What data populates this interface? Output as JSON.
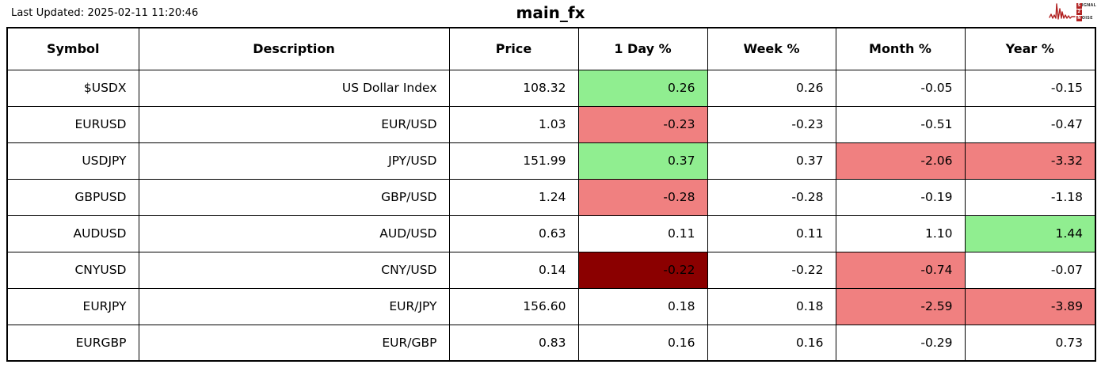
{
  "page": {
    "last_updated": "Last Updated: 2025-02-11 11:20:46",
    "title": "main_fx"
  },
  "logo": {
    "name": "signal-2-noise",
    "lines": [
      {
        "badge": "S",
        "rest": "IGNAL"
      },
      {
        "badge": "2",
        "rest": ""
      },
      {
        "badge": "N",
        "rest": "OISE"
      }
    ],
    "accent_color": "#b22222"
  },
  "colors": {
    "positive": "#90ee90",
    "negative": "#f08080",
    "strong_negative": "#8b0000",
    "border": "#000000",
    "background": "#ffffff"
  },
  "chart_data": {
    "type": "table",
    "title": "main_fx",
    "columns": [
      "Symbol",
      "Description",
      "Price",
      "1 Day %",
      "Week %",
      "Month %",
      "Year %"
    ],
    "rows": [
      {
        "cells": [
          "$USDX",
          "US Dollar Index",
          "108.32",
          "0.26",
          "0.26",
          "-0.05",
          "-0.15"
        ],
        "highlights": {
          "3": "positive"
        }
      },
      {
        "cells": [
          "EURUSD",
          "EUR/USD",
          "1.03",
          "-0.23",
          "-0.23",
          "-0.51",
          "-0.47"
        ],
        "highlights": {
          "3": "negative"
        }
      },
      {
        "cells": [
          "USDJPY",
          "JPY/USD",
          "151.99",
          "0.37",
          "0.37",
          "-2.06",
          "-3.32"
        ],
        "highlights": {
          "3": "positive",
          "5": "negative",
          "6": "negative"
        }
      },
      {
        "cells": [
          "GBPUSD",
          "GBP/USD",
          "1.24",
          "-0.28",
          "-0.28",
          "-0.19",
          "-1.18"
        ],
        "highlights": {
          "3": "negative"
        }
      },
      {
        "cells": [
          "AUDUSD",
          "AUD/USD",
          "0.63",
          "0.11",
          "0.11",
          "1.10",
          "1.44"
        ],
        "highlights": {
          "6": "positive"
        }
      },
      {
        "cells": [
          "CNYUSD",
          "CNY/USD",
          "0.14",
          "-0.22",
          "-0.22",
          "-0.74",
          "-0.07"
        ],
        "highlights": {
          "3": "strong_negative",
          "5": "negative"
        }
      },
      {
        "cells": [
          "EURJPY",
          "EUR/JPY",
          "156.60",
          "0.18",
          "0.18",
          "-2.59",
          "-3.89"
        ],
        "highlights": {
          "5": "negative",
          "6": "negative"
        }
      },
      {
        "cells": [
          "EURGBP",
          "EUR/GBP",
          "0.83",
          "0.16",
          "0.16",
          "-0.29",
          "0.73"
        ],
        "highlights": {}
      }
    ]
  }
}
